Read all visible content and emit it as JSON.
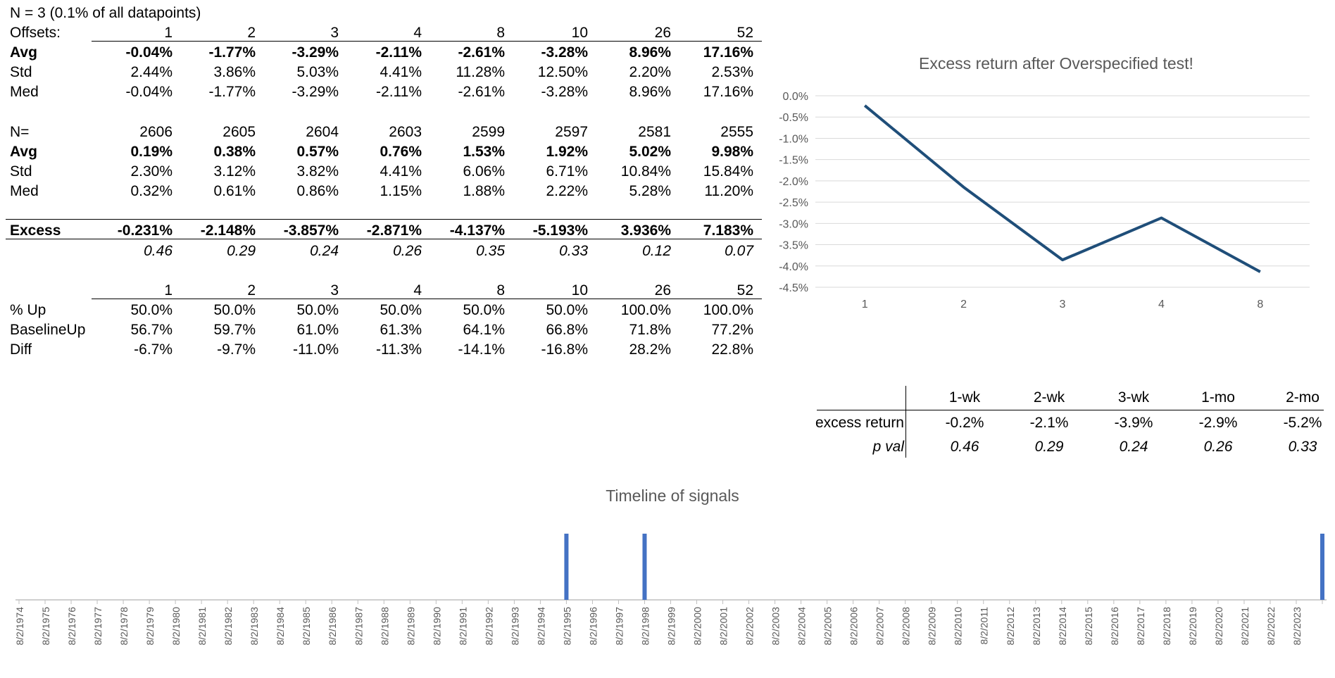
{
  "title": "N = 3 (0.1% of all datapoints)",
  "offsets_label": "Offsets:",
  "offsets": [
    "1",
    "2",
    "3",
    "4",
    "8",
    "10",
    "26",
    "52"
  ],
  "signal_block": {
    "avg": {
      "label": "Avg",
      "values": [
        "-0.04%",
        "-1.77%",
        "-3.29%",
        "-2.11%",
        "-2.61%",
        "-3.28%",
        "8.96%",
        "17.16%"
      ]
    },
    "std": {
      "label": "Std",
      "values": [
        "2.44%",
        "3.86%",
        "5.03%",
        "4.41%",
        "11.28%",
        "12.50%",
        "2.20%",
        "2.53%"
      ]
    },
    "med": {
      "label": "Med",
      "values": [
        "-0.04%",
        "-1.77%",
        "-3.29%",
        "-2.11%",
        "-2.61%",
        "-3.28%",
        "8.96%",
        "17.16%"
      ]
    }
  },
  "baseline_block": {
    "n": {
      "label": "N=",
      "values": [
        "2606",
        "2605",
        "2604",
        "2603",
        "2599",
        "2597",
        "2581",
        "2555"
      ]
    },
    "avg": {
      "label": "Avg",
      "values": [
        "0.19%",
        "0.38%",
        "0.57%",
        "0.76%",
        "1.53%",
        "1.92%",
        "5.02%",
        "9.98%"
      ]
    },
    "std": {
      "label": "Std",
      "values": [
        "2.30%",
        "3.12%",
        "3.82%",
        "4.41%",
        "6.06%",
        "6.71%",
        "10.84%",
        "15.84%"
      ]
    },
    "med": {
      "label": "Med",
      "values": [
        "0.32%",
        "0.61%",
        "0.86%",
        "1.15%",
        "1.88%",
        "2.22%",
        "5.28%",
        "11.20%"
      ]
    }
  },
  "excess_block": {
    "excess": {
      "label": "Excess",
      "values": [
        "-0.231%",
        "-2.148%",
        "-3.857%",
        "-2.871%",
        "-4.137%",
        "-5.193%",
        "3.936%",
        "7.183%"
      ]
    },
    "pvals": [
      "0.46",
      "0.29",
      "0.24",
      "0.26",
      "0.35",
      "0.33",
      "0.12",
      "0.07"
    ]
  },
  "up_block": {
    "header": [
      "1",
      "2",
      "3",
      "4",
      "8",
      "10",
      "26",
      "52"
    ],
    "pct_up": {
      "label": "% Up",
      "values": [
        "50.0%",
        "50.0%",
        "50.0%",
        "50.0%",
        "50.0%",
        "50.0%",
        "100.0%",
        "100.0%"
      ]
    },
    "baseline_up": {
      "label": "BaselineUp",
      "values": [
        "56.7%",
        "59.7%",
        "61.0%",
        "61.3%",
        "64.1%",
        "66.8%",
        "71.8%",
        "77.2%"
      ]
    },
    "diff": {
      "label": "Diff",
      "values": [
        "-6.7%",
        "-9.7%",
        "-11.0%",
        "-11.3%",
        "-14.1%",
        "-16.8%",
        "28.2%",
        "22.8%"
      ]
    }
  },
  "summary_table": {
    "headers": [
      "1-wk",
      "2-wk",
      "3-wk",
      "1-mo",
      "2-mo"
    ],
    "excess_label": "excess return",
    "excess_values": [
      "-0.2%",
      "-2.1%",
      "-3.9%",
      "-2.9%",
      "-5.2%"
    ],
    "pval_label": "p val",
    "pval_values": [
      "0.46",
      "0.29",
      "0.24",
      "0.26",
      "0.33"
    ]
  },
  "colors": {
    "line": "#1f4e79",
    "signal_bar": "#4472c4",
    "grid": "#d9d9d9",
    "axis_text": "#595959"
  },
  "chart_data": [
    {
      "type": "line",
      "title": "Excess return after Overspecified test!",
      "categories": [
        "1",
        "2",
        "3",
        "4",
        "8"
      ],
      "series": [
        {
          "values": [
            -0.231,
            -2.148,
            -3.857,
            -2.871,
            -4.137
          ]
        }
      ],
      "ylim": [
        -4.5,
        0.0
      ],
      "yticks": [
        "0.0%",
        "-0.5%",
        "-1.0%",
        "-1.5%",
        "-2.0%",
        "-2.5%",
        "-3.0%",
        "-3.5%",
        "-4.0%",
        "-4.5%"
      ],
      "grid": true
    },
    {
      "type": "bar",
      "title": "Timeline of signals",
      "categories": [
        "8/2/1974",
        "8/2/1975",
        "8/2/1976",
        "8/2/1977",
        "8/2/1978",
        "8/2/1979",
        "8/2/1980",
        "8/2/1981",
        "8/2/1982",
        "8/2/1983",
        "8/2/1984",
        "8/2/1985",
        "8/2/1986",
        "8/2/1987",
        "8/2/1988",
        "8/2/1989",
        "8/2/1990",
        "8/2/1991",
        "8/2/1992",
        "8/2/1993",
        "8/2/1994",
        "8/2/1995",
        "8/2/1996",
        "8/2/1997",
        "8/2/1998",
        "8/2/1999",
        "8/2/2000",
        "8/2/2001",
        "8/2/2002",
        "8/2/2003",
        "8/2/2004",
        "8/2/2005",
        "8/2/2006",
        "8/2/2007",
        "8/2/2008",
        "8/2/2009",
        "8/2/2010",
        "8/2/2011",
        "8/2/2012",
        "8/2/2013",
        "8/2/2014",
        "8/2/2015",
        "8/2/2016",
        "8/2/2017",
        "8/2/2018",
        "8/2/2019",
        "8/2/2020",
        "8/2/2021",
        "8/2/2022",
        "8/2/2023"
      ],
      "signals": [
        1995.0,
        1998.0,
        2024.0
      ],
      "xlim": [
        1974.0,
        2024.0
      ],
      "grid": false
    }
  ]
}
